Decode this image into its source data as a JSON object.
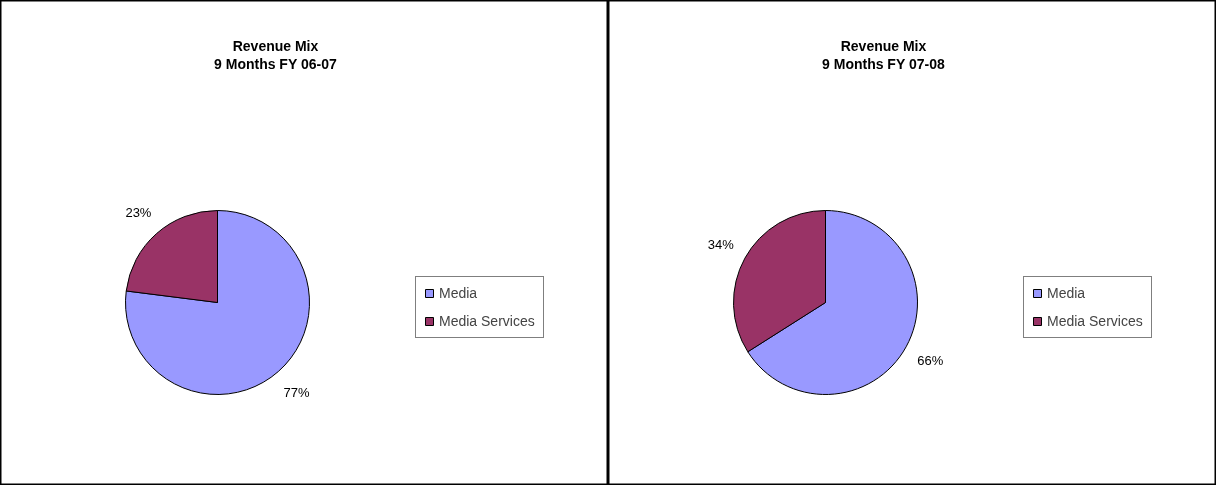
{
  "chart_data": [
    {
      "type": "pie",
      "title": "Revenue Mix",
      "subtitle": "9 Months FY 06-07",
      "categories": [
        "Media",
        "Media Services"
      ],
      "values": [
        77,
        23
      ],
      "colors": [
        "#9999ff",
        "#993366"
      ],
      "value_labels": [
        "77%",
        "23%"
      ],
      "legend": "right"
    },
    {
      "type": "pie",
      "title": "Revenue Mix",
      "subtitle": "9 Months FY 07-08",
      "categories": [
        "Media",
        "Media Services"
      ],
      "values": [
        66,
        34
      ],
      "colors": [
        "#9999ff",
        "#993366"
      ],
      "value_labels": [
        "66%",
        "34%"
      ],
      "legend": "right"
    }
  ]
}
